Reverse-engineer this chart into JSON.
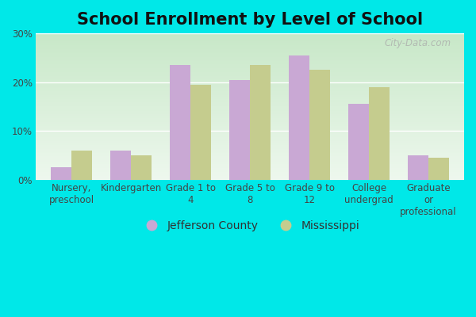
{
  "title": "School Enrollment by Level of School",
  "categories": [
    "Nursery,\npreschool",
    "Kindergarten",
    "Grade 1 to\n4",
    "Grade 5 to\n8",
    "Grade 9 to\n12",
    "College\nundergrad",
    "Graduate\nor\nprofessional"
  ],
  "jefferson_county": [
    2.5,
    6.0,
    23.5,
    20.5,
    25.5,
    15.5,
    5.0
  ],
  "mississippi": [
    6.0,
    5.0,
    19.5,
    23.5,
    22.5,
    19.0,
    4.5
  ],
  "jefferson_color": "#c9a8d4",
  "mississippi_color": "#c5cc8e",
  "outer_bg": "#00e8e8",
  "plot_bg_top": "#c8e8c8",
  "plot_bg_bottom": "#eef8ee",
  "yticks": [
    0,
    10,
    20,
    30
  ],
  "ylim": [
    0,
    30
  ],
  "legend_jefferson": "Jefferson County",
  "legend_mississippi": "Mississippi",
  "bar_width": 0.35,
  "title_fontsize": 15,
  "tick_fontsize": 8.5,
  "legend_fontsize": 10,
  "watermark": "City-Data.com"
}
